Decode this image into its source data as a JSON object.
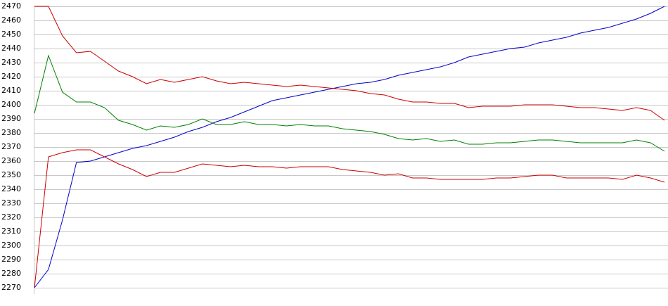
{
  "chart_data": {
    "type": "line",
    "categories": [
      null,
      null,
      null,
      null,
      null,
      null,
      null,
      null,
      null,
      null,
      null,
      null,
      null,
      null,
      null,
      null,
      null,
      null,
      null,
      null,
      null,
      null,
      null,
      null,
      null,
      null,
      null,
      null,
      null,
      null,
      null,
      null,
      null,
      null,
      null,
      null,
      null,
      null,
      null,
      null,
      null,
      null,
      null,
      null,
      null,
      null
    ],
    "series": [
      {
        "color": "#0000cc",
        "values": [
          2270,
          2283,
          2318,
          2359,
          2360,
          2363,
          2366,
          2369,
          2371,
          2374,
          2377,
          2381,
          2384,
          2388,
          2391,
          2395,
          2399,
          2403,
          2405,
          2407,
          2409,
          2411,
          2413,
          2415,
          2416,
          2418,
          2421,
          2423,
          2425,
          2427,
          2430,
          2434,
          2436,
          2438,
          2440,
          2441,
          2444,
          2446,
          2448,
          2451,
          2453,
          2455,
          2458,
          2461,
          2465,
          2470
        ]
      },
      {
        "color": "#cc0000",
        "values": [
          2470,
          2470,
          2449,
          2437,
          2438,
          2431,
          2424,
          2420,
          2415,
          2418,
          2416,
          2418,
          2420,
          2417,
          2415,
          2416,
          2415,
          2414,
          2413,
          2414,
          2413,
          2412,
          2411,
          2410,
          2408,
          2407,
          2404,
          2402,
          2402,
          2401,
          2401,
          2398,
          2399,
          2399,
          2399,
          2400,
          2400,
          2400,
          2399,
          2398,
          2398,
          2397,
          2396,
          2398,
          2396,
          2389
        ]
      },
      {
        "color": "#008000",
        "values": [
          2394,
          2435,
          2409,
          2402,
          2402,
          2398,
          2389,
          2386,
          2382,
          2385,
          2384,
          2386,
          2390,
          2386,
          2386,
          2388,
          2386,
          2386,
          2385,
          2386,
          2385,
          2385,
          2383,
          2382,
          2381,
          2379,
          2376,
          2375,
          2376,
          2374,
          2375,
          2372,
          2372,
          2373,
          2373,
          2374,
          2375,
          2375,
          2374,
          2373,
          2373,
          2373,
          2373,
          2375,
          2373,
          2367
        ]
      },
      {
        "color": "#cc0000",
        "values": [
          2270,
          2363,
          2366,
          2368,
          2368,
          2363,
          2358,
          2354,
          2349,
          2352,
          2352,
          2355,
          2358,
          2357,
          2356,
          2357,
          2356,
          2356,
          2355,
          2356,
          2356,
          2356,
          2354,
          2353,
          2352,
          2350,
          2351,
          2348,
          2348,
          2347,
          2347,
          2347,
          2347,
          2348,
          2348,
          2349,
          2350,
          2350,
          2348,
          2348,
          2348,
          2348,
          2347,
          2350,
          2348,
          2345
        ]
      }
    ],
    "ylim": [
      2270,
      2470
    ],
    "yticks": [
      2270,
      2280,
      2290,
      2300,
      2310,
      2320,
      2330,
      2340,
      2350,
      2360,
      2370,
      2380,
      2390,
      2400,
      2410,
      2420,
      2430,
      2440,
      2450,
      2460,
      2470
    ],
    "grid": true
  }
}
